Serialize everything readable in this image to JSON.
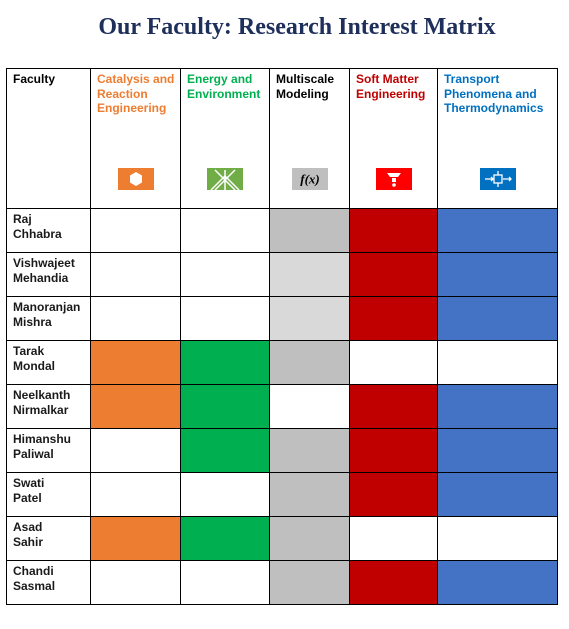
{
  "title": "Our Faculty: Research Interest Matrix",
  "header": {
    "faculty_label": "Faculty",
    "columns": [
      {
        "label": "Catalysis and Reaction Engineering",
        "color": "#ed7d31",
        "icon": "hexagon-icon"
      },
      {
        "label": "Energy and Environment",
        "color": "#00b050",
        "icon": "solar-panel-icon"
      },
      {
        "label": "Multiscale Modeling",
        "color": "#000000",
        "icon": "function-icon",
        "icon_text": "f(x)"
      },
      {
        "label": "Soft Matter Engineering",
        "color": "#c00000",
        "icon": "funnel-icon"
      },
      {
        "label": "Transport Phenomena and Thermodynamics",
        "color": "#0070c0",
        "icon": "flow-transport-icon"
      }
    ]
  },
  "colors": {
    "none": "#ffffff",
    "catalysis": "#ed7d31",
    "energy": "#00b050",
    "modeling": "#bfbfbf",
    "modeling_light": "#d9d9d9",
    "soft_matter": "#c00000",
    "transport": "#4472c4"
  },
  "rows": [
    {
      "first": "Raj",
      "last": "Chhabra",
      "cells": [
        "none",
        "none",
        "modeling",
        "soft_matter",
        "transport"
      ]
    },
    {
      "first": "Vishwajeet",
      "last": "Mehandia",
      "cells": [
        "none",
        "none",
        "modeling_light",
        "soft_matter",
        "transport"
      ]
    },
    {
      "first": "Manoranjan",
      "last": "Mishra",
      "cells": [
        "none",
        "none",
        "modeling_light",
        "soft_matter",
        "transport"
      ]
    },
    {
      "first": "Tarak",
      "last": "Mondal",
      "cells": [
        "catalysis",
        "energy",
        "modeling",
        "none",
        "none"
      ]
    },
    {
      "first": "Neelkanth",
      "last": "Nirmalkar",
      "cells": [
        "catalysis",
        "energy",
        "none",
        "soft_matter",
        "transport"
      ]
    },
    {
      "first": "Himanshu",
      "last": "Paliwal",
      "cells": [
        "none",
        "energy",
        "modeling",
        "soft_matter",
        "transport"
      ]
    },
    {
      "first": "Swati",
      "last": "Patel",
      "cells": [
        "none",
        "none",
        "modeling",
        "soft_matter",
        "transport"
      ]
    },
    {
      "first": "Asad",
      "last": "Sahir",
      "cells": [
        "catalysis",
        "energy",
        "modeling",
        "none",
        "none"
      ]
    },
    {
      "first": "Chandi",
      "last": "Sasmal",
      "cells": [
        "none",
        "none",
        "modeling",
        "soft_matter",
        "transport"
      ]
    }
  ]
}
